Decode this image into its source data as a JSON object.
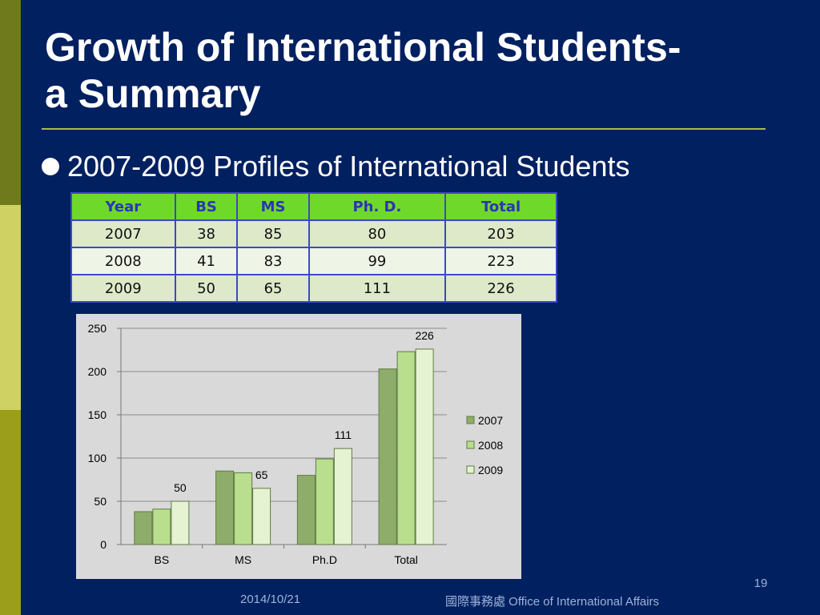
{
  "slide": {
    "title_line1": "Growth of International Students-",
    "title_line2": "a Summary",
    "bullet": "2007-2009 Profiles of International Students",
    "page_number": "19",
    "footer_date": "2014/10/21",
    "footer_office": "國際事務處  Office of International Affairs"
  },
  "colors": {
    "background": "#002060",
    "table_header": "#6fd92a",
    "table_header_text": "#2b35b5",
    "table_border": "#3d48c8",
    "series_2007": "#8fad6a",
    "series_2008": "#b9df8e",
    "series_2009": "#e6f3d2"
  },
  "table": {
    "headers": [
      "Year",
      "BS",
      "MS",
      "Ph. D.",
      "Total"
    ],
    "rows": [
      [
        "2007",
        "38",
        "85",
        "80",
        "203"
      ],
      [
        "2008",
        "41",
        "83",
        "99",
        "223"
      ],
      [
        "2009",
        "50",
        "65",
        "111",
        "226"
      ]
    ]
  },
  "chart_data": {
    "type": "bar",
    "categories": [
      "BS",
      "MS",
      "Ph.D",
      "Total"
    ],
    "series": [
      {
        "name": "2007",
        "values": [
          38,
          85,
          80,
          203
        ],
        "color": "#8fad6a"
      },
      {
        "name": "2008",
        "values": [
          41,
          83,
          99,
          223
        ],
        "color": "#b9df8e"
      },
      {
        "name": "2009",
        "values": [
          50,
          65,
          111,
          226
        ],
        "color": "#e6f3d2"
      }
    ],
    "labeled_series": "2009",
    "ylim": [
      0,
      250
    ],
    "yticks": [
      "0",
      "50",
      "100",
      "150",
      "200",
      "250"
    ],
    "grid": true,
    "legend_position": "right"
  }
}
